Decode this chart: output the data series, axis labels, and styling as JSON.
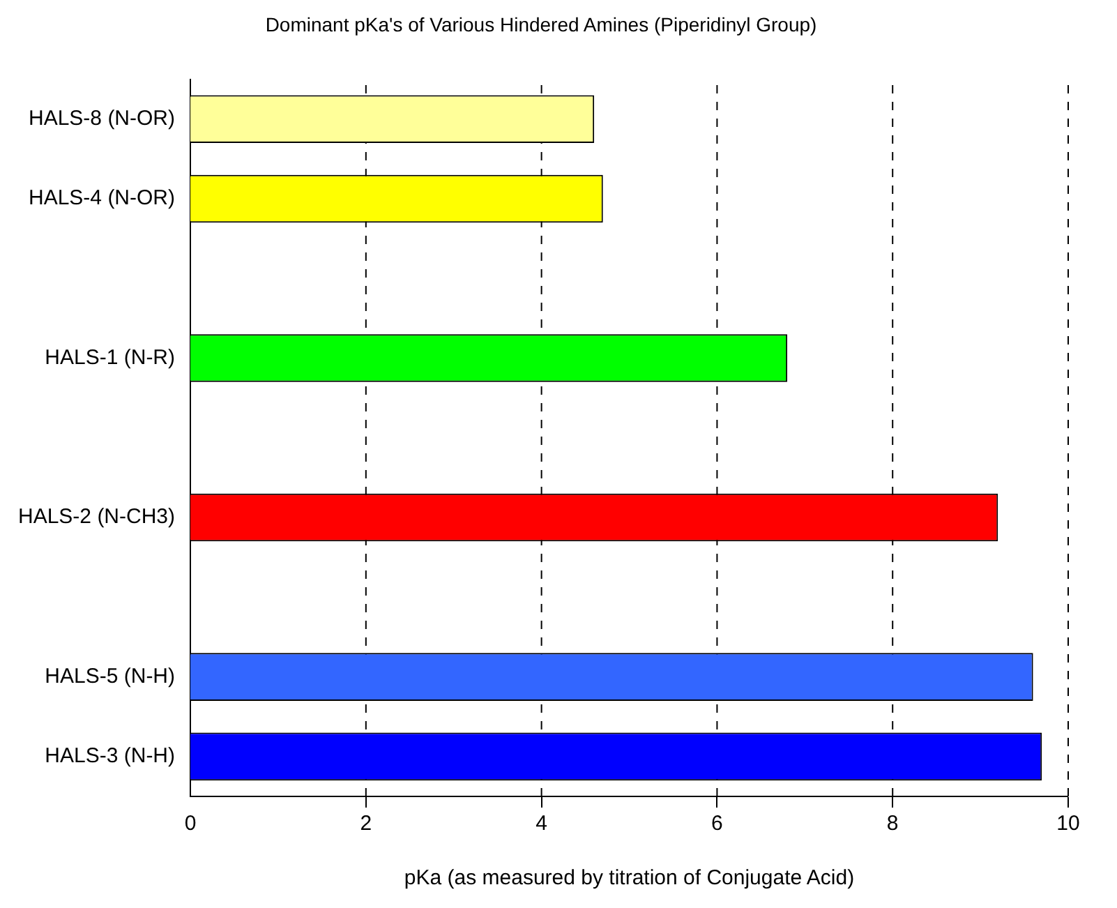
{
  "chart_data": {
    "type": "bar",
    "orientation": "horizontal",
    "title": "Dominant pKa's of Various Hindered Amines (Piperidinyl Group)",
    "xlabel": "pKa (as measured by titration of Conjugate Acid)",
    "categories": [
      "HALS-8 (N-OR)",
      "HALS-4 (N-OR)",
      null,
      "HALS-1 (N-R)",
      null,
      "HALS-2 (N-CH3)",
      null,
      "HALS-5 (N-H)",
      "HALS-3 (N-H)"
    ],
    "values": [
      4.6,
      4.7,
      null,
      6.8,
      null,
      9.2,
      null,
      9.6,
      9.7
    ],
    "colors": [
      "#ffff99",
      "#ffff00",
      "#000000",
      "#00ff00",
      "#000000",
      "#ff0000",
      "#000000",
      "#3366ff",
      "#0000ff"
    ],
    "xlim": [
      0,
      10
    ],
    "xticks": [
      0,
      2,
      4,
      6,
      8,
      10
    ],
    "grid": "x",
    "line_style": "dashed",
    "legend": false
  }
}
